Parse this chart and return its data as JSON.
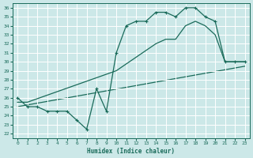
{
  "xlabel": "Humidex (Indice chaleur)",
  "bg_color": "#cce8e8",
  "grid_color": "#b8d8d8",
  "line_color": "#1a6b5a",
  "xlim": [
    -0.5,
    23.5
  ],
  "ylim": [
    21.5,
    36.5
  ],
  "xticks": [
    0,
    1,
    2,
    3,
    4,
    5,
    6,
    7,
    8,
    9,
    10,
    11,
    12,
    13,
    14,
    15,
    16,
    17,
    18,
    19,
    20,
    21,
    22,
    23
  ],
  "yticks": [
    22,
    23,
    24,
    25,
    26,
    27,
    28,
    29,
    30,
    31,
    32,
    33,
    34,
    35,
    36
  ],
  "line1_x": [
    0,
    1,
    2,
    3,
    4,
    5,
    6,
    7,
    8,
    9,
    10,
    11,
    12,
    13,
    14,
    15,
    16,
    17,
    18,
    19,
    20,
    21,
    22,
    23
  ],
  "line1_y": [
    26,
    25,
    25,
    24.5,
    24.5,
    24.5,
    23.5,
    22.5,
    27,
    24.5,
    31,
    34,
    34.5,
    34.5,
    35.5,
    35.5,
    35,
    36,
    36,
    35,
    34.5,
    30,
    30,
    30
  ],
  "line2_x": [
    0,
    1,
    10,
    14,
    15,
    16,
    17,
    18,
    19,
    20,
    21,
    22,
    23
  ],
  "line2_y": [
    25.5,
    25.5,
    29,
    32,
    32.5,
    32.5,
    34,
    34.5,
    34,
    33,
    30,
    30,
    30
  ],
  "line3_x": [
    0,
    23
  ],
  "line3_y": [
    25,
    29.5
  ]
}
